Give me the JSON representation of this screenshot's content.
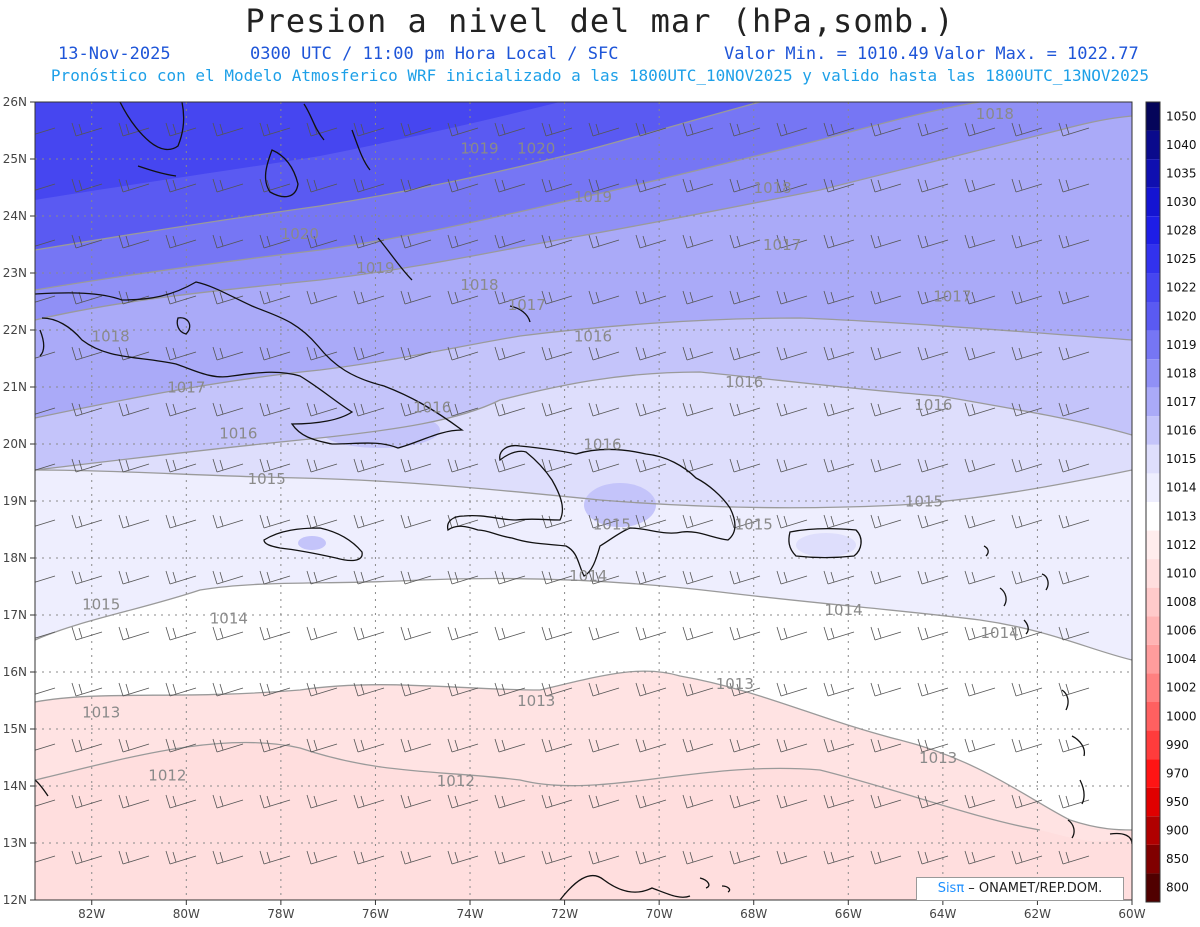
{
  "header": {
    "title": "Presion a nivel del mar (hPa,somb.)",
    "date": "13-Nov-2025",
    "time": "0300 UTC / 11:00 pm Hora Local / SFC",
    "vmin": "Valor Min. = 1010.49",
    "vmax": "Valor Max. = 1022.77",
    "model_info": "Pronóstico con el Modelo Atmosferico WRF inicializado a las 1800UTC_10NOV2025 y valido hasta las  1800UTC_13NOV2025"
  },
  "map": {
    "lat_ticks": [
      "26N",
      "25N",
      "24N",
      "23N",
      "22N",
      "21N",
      "20N",
      "19N",
      "18N",
      "17N",
      "16N",
      "15N",
      "14N",
      "13N",
      "12N"
    ],
    "lon_ticks": [
      "82W",
      "80W",
      "78W",
      "76W",
      "74W",
      "72W",
      "70W",
      "68W",
      "66W",
      "64W",
      "62W",
      "60W"
    ],
    "lat_range": [
      12,
      26
    ],
    "lon_range": [
      -83.2,
      -60
    ],
    "contour_labels": [
      {
        "text": "1020",
        "lon": -77.6,
        "lat": 23.6
      },
      {
        "text": "1020",
        "lon": -72.6,
        "lat": 25.1
      },
      {
        "text": "1019",
        "lon": -73.8,
        "lat": 25.1
      },
      {
        "text": "1019",
        "lon": -71.4,
        "lat": 24.25
      },
      {
        "text": "1019",
        "lon": -76.0,
        "lat": 23.0
      },
      {
        "text": "1018",
        "lon": -81.6,
        "lat": 21.8
      },
      {
        "text": "1018",
        "lon": -73.8,
        "lat": 22.7
      },
      {
        "text": "1018",
        "lon": -67.6,
        "lat": 24.4
      },
      {
        "text": "1018",
        "lon": -62.9,
        "lat": 25.7
      },
      {
        "text": "1017",
        "lon": -80.0,
        "lat": 20.9
      },
      {
        "text": "1017",
        "lon": -72.8,
        "lat": 22.35
      },
      {
        "text": "1017",
        "lon": -67.4,
        "lat": 23.4
      },
      {
        "text": "1017",
        "lon": -63.8,
        "lat": 22.5
      },
      {
        "text": "1016",
        "lon": -78.9,
        "lat": 20.1
      },
      {
        "text": "1016",
        "lon": -74.8,
        "lat": 20.55
      },
      {
        "text": "1016",
        "lon": -71.4,
        "lat": 21.8
      },
      {
        "text": "1016",
        "lon": -68.2,
        "lat": 21.0
      },
      {
        "text": "1016",
        "lon": -64.2,
        "lat": 20.6
      },
      {
        "text": "1016",
        "lon": -71.2,
        "lat": 19.9
      },
      {
        "text": "1015",
        "lon": -78.3,
        "lat": 19.3
      },
      {
        "text": "1015",
        "lon": -81.8,
        "lat": 17.1
      },
      {
        "text": "1015",
        "lon": -71.0,
        "lat": 18.5
      },
      {
        "text": "1015",
        "lon": -68.0,
        "lat": 18.5
      },
      {
        "text": "1015",
        "lon": -64.4,
        "lat": 18.9
      },
      {
        "text": "1014",
        "lon": -79.1,
        "lat": 16.85
      },
      {
        "text": "1014",
        "lon": -71.5,
        "lat": 17.6
      },
      {
        "text": "1014",
        "lon": -66.1,
        "lat": 17.0
      },
      {
        "text": "1014",
        "lon": -62.8,
        "lat": 16.6
      },
      {
        "text": "1013",
        "lon": -81.8,
        "lat": 15.2
      },
      {
        "text": "1013",
        "lon": -72.6,
        "lat": 15.4
      },
      {
        "text": "1013",
        "lon": -68.4,
        "lat": 15.7
      },
      {
        "text": "1013",
        "lon": -64.1,
        "lat": 14.4
      },
      {
        "text": "1012",
        "lon": -80.4,
        "lat": 14.1
      },
      {
        "text": "1012",
        "lon": -74.3,
        "lat": 14.0
      }
    ]
  },
  "colorbar": {
    "labels": [
      "1050",
      "1040",
      "1035",
      "1030",
      "1028",
      "1025",
      "1022",
      "1020",
      "1019",
      "1018",
      "1017",
      "1016",
      "1015",
      "1014",
      "1013",
      "1012",
      "1010",
      "1008",
      "1006",
      "1004",
      "1002",
      "1000",
      "990",
      "970",
      "950",
      "900",
      "850",
      "800"
    ],
    "colors": [
      "#05055a",
      "#0a0a8c",
      "#0f0fb0",
      "#1414d2",
      "#1e1ee6",
      "#3232ee",
      "#4646f0",
      "#5a5af2",
      "#7676f4",
      "#9090f6",
      "#aaaaf8",
      "#c4c4fa",
      "#dedefc",
      "#eeeefe",
      "#ffffff",
      "#ffeded",
      "#ffdede",
      "#ffcaca",
      "#ffb4b4",
      "#ff9c9c",
      "#ff8080",
      "#ff6060",
      "#ff3c3c",
      "#ff1414",
      "#e00000",
      "#b00000",
      "#800000",
      "#500000"
    ]
  },
  "credit": {
    "logo": "Sisπ",
    "text": " – ONAMET/REP.DOM."
  }
}
